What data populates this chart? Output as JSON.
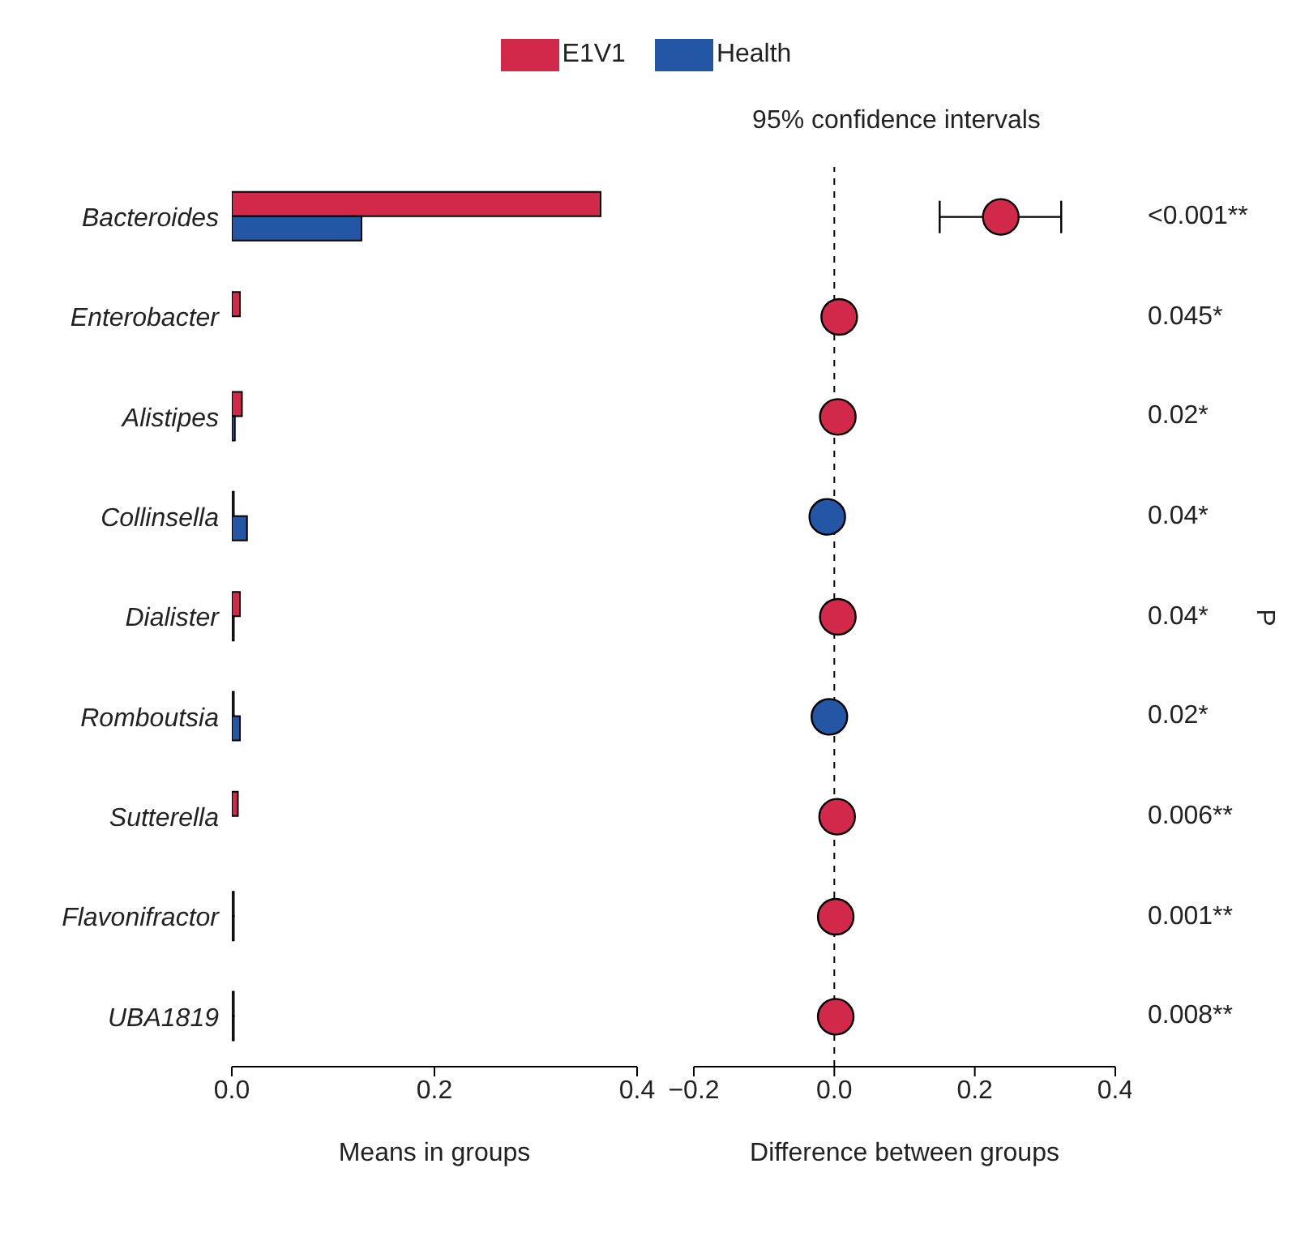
{
  "chart_data": [
    {
      "type": "bar",
      "orientation": "horizontal",
      "categories": [
        "Bacteroides",
        "Enterobacter",
        "Alistipes",
        "Collinsella",
        "Dialister",
        "Romboutsia",
        "Sutterella",
        "Flavonifractor",
        "UBA1819"
      ],
      "series": [
        {
          "name": "E1V1",
          "color": "#d2294a",
          "values": [
            0.364,
            0.008,
            0.01,
            0.002,
            0.008,
            0.002,
            0.006,
            0.002,
            0.002
          ]
        },
        {
          "name": "Health",
          "color": "#2456a6",
          "values": [
            0.128,
            null,
            0.003,
            0.015,
            0.002,
            0.008,
            null,
            0.002,
            0.002
          ]
        }
      ],
      "xlim": [
        0,
        0.4
      ],
      "xticks": [
        {
          "value": 0,
          "label": "0.0"
        },
        0.2,
        0.4
      ],
      "xlabel": "Means in groups",
      "legend": "top"
    },
    {
      "type": "scatter",
      "orientation": "horizontal",
      "title": "95% confidence intervals",
      "values": [
        0.237,
        0.007,
        0.005,
        -0.01,
        0.005,
        -0.007,
        0.004,
        0.002,
        0.002
      ],
      "colors": [
        "#d2294a",
        "#d2294a",
        "#d2294a",
        "#2456a6",
        "#d2294a",
        "#2456a6",
        "#d2294a",
        "#d2294a",
        "#d2294a"
      ],
      "errors": [
        [
          0.15,
          0.323
        ],
        null,
        null,
        null,
        null,
        null,
        null,
        null,
        null
      ],
      "xlim": [
        -0.2,
        0.4
      ],
      "xticks": [
        -0.2,
        {
          "value": 0,
          "label": "0.0"
        },
        0.2,
        0.4
      ],
      "xlabel": "Difference between groups",
      "y2label": "P",
      "ref_lines": [
        {
          "axis": "x",
          "value": 0,
          "line_style": "dashed"
        }
      ],
      "annotations": [
        "<0.001**",
        "0.045*",
        "0.02*",
        "0.04*",
        "0.04*",
        "0.02*",
        "0.006**",
        "0.001**",
        "0.008**"
      ]
    }
  ]
}
